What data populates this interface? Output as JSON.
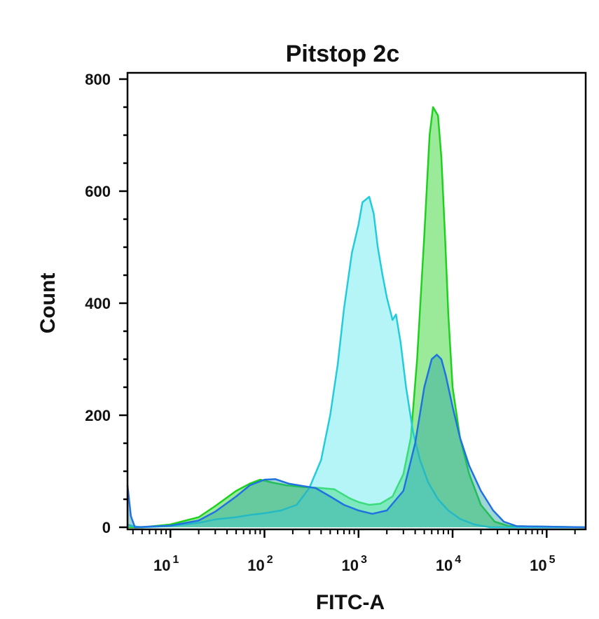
{
  "chart_data": {
    "type": "area",
    "title": "Pitstop 2c",
    "xlabel": "FITC-A",
    "ylabel": "Count",
    "x_scale": "log",
    "xlim": [
      3.5,
      260000
    ],
    "ylim": [
      0,
      800
    ],
    "grid": false,
    "legend": "none",
    "y_ticks": [
      {
        "value": 0,
        "label": "0"
      },
      {
        "value": 200,
        "label": "200"
      },
      {
        "value": 400,
        "label": "400"
      },
      {
        "value": 600,
        "label": "600"
      },
      {
        "value": 800,
        "label": "800"
      }
    ],
    "x_ticks": [
      {
        "value": 10,
        "base": "10",
        "exp": "1"
      },
      {
        "value": 100,
        "base": "10",
        "exp": "2"
      },
      {
        "value": 1000,
        "base": "10",
        "exp": "3"
      },
      {
        "value": 10000,
        "base": "10",
        "exp": "4"
      },
      {
        "value": 100000,
        "base": "10",
        "exp": "5"
      }
    ],
    "series": [
      {
        "color": "#1fd11f",
        "fill": "#1fd11f",
        "points": [
          [
            3.5,
            0
          ],
          [
            5,
            0
          ],
          [
            10,
            5
          ],
          [
            20,
            18
          ],
          [
            30,
            38
          ],
          [
            50,
            65
          ],
          [
            70,
            78
          ],
          [
            90,
            85
          ],
          [
            120,
            80
          ],
          [
            170,
            75
          ],
          [
            250,
            72
          ],
          [
            400,
            70
          ],
          [
            550,
            68
          ],
          [
            800,
            52
          ],
          [
            1000,
            45
          ],
          [
            1300,
            40
          ],
          [
            1700,
            42
          ],
          [
            2300,
            55
          ],
          [
            3000,
            95
          ],
          [
            3600,
            160
          ],
          [
            4200,
            300
          ],
          [
            5000,
            520
          ],
          [
            5700,
            700
          ],
          [
            6200,
            750
          ],
          [
            7000,
            735
          ],
          [
            7600,
            660
          ],
          [
            8300,
            520
          ],
          [
            9000,
            380
          ],
          [
            10000,
            250
          ],
          [
            12000,
            160
          ],
          [
            15000,
            95
          ],
          [
            20000,
            40
          ],
          [
            28000,
            10
          ],
          [
            40000,
            2
          ],
          [
            260000,
            0
          ]
        ]
      },
      {
        "color": "#22ccdd",
        "fill": "#5ee8ee",
        "points": [
          [
            3.5,
            5
          ],
          [
            4,
            2
          ],
          [
            5,
            0
          ],
          [
            10,
            2
          ],
          [
            20,
            8
          ],
          [
            30,
            14
          ],
          [
            50,
            18
          ],
          [
            70,
            22
          ],
          [
            100,
            25
          ],
          [
            150,
            30
          ],
          [
            220,
            40
          ],
          [
            300,
            70
          ],
          [
            400,
            120
          ],
          [
            500,
            200
          ],
          [
            600,
            290
          ],
          [
            700,
            390
          ],
          [
            850,
            490
          ],
          [
            1000,
            540
          ],
          [
            1100,
            580
          ],
          [
            1300,
            590
          ],
          [
            1450,
            560
          ],
          [
            1600,
            500
          ],
          [
            1800,
            450
          ],
          [
            2000,
            410
          ],
          [
            2300,
            370
          ],
          [
            2500,
            380
          ],
          [
            2800,
            330
          ],
          [
            3200,
            250
          ],
          [
            3800,
            170
          ],
          [
            4500,
            120
          ],
          [
            5500,
            80
          ],
          [
            7000,
            50
          ],
          [
            9000,
            30
          ],
          [
            12000,
            15
          ],
          [
            17000,
            5
          ],
          [
            25000,
            0
          ],
          [
            260000,
            0
          ]
        ]
      },
      {
        "color": "#1f72e0",
        "fill": "#2aa5a5",
        "points": [
          [
            3.5,
            75
          ],
          [
            3.8,
            20
          ],
          [
            4.2,
            0
          ],
          [
            10,
            3
          ],
          [
            20,
            12
          ],
          [
            30,
            28
          ],
          [
            50,
            55
          ],
          [
            70,
            75
          ],
          [
            100,
            85
          ],
          [
            130,
            86
          ],
          [
            180,
            78
          ],
          [
            250,
            74
          ],
          [
            350,
            70
          ],
          [
            500,
            55
          ],
          [
            700,
            40
          ],
          [
            1000,
            30
          ],
          [
            1400,
            24
          ],
          [
            2000,
            30
          ],
          [
            3000,
            65
          ],
          [
            4000,
            150
          ],
          [
            5000,
            250
          ],
          [
            6000,
            300
          ],
          [
            6800,
            308
          ],
          [
            7600,
            300
          ],
          [
            8500,
            270
          ],
          [
            10000,
            215
          ],
          [
            12000,
            160
          ],
          [
            15000,
            110
          ],
          [
            20000,
            65
          ],
          [
            27000,
            30
          ],
          [
            35000,
            10
          ],
          [
            48000,
            2
          ],
          [
            260000,
            0
          ]
        ]
      }
    ]
  }
}
